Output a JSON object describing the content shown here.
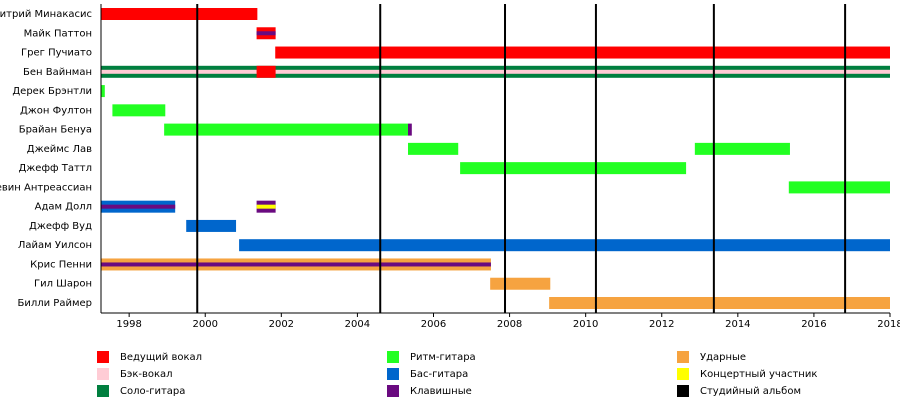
{
  "chart_data": {
    "type": "timeline",
    "xlim": [
      1997.26,
      2018
    ],
    "xticks": [
      1998,
      2000,
      2002,
      2004,
      2006,
      2008,
      2010,
      2012,
      2014,
      2016,
      2018
    ],
    "roles": [
      {
        "name": "Ведущий вокал",
        "color": "#ff0000"
      },
      {
        "name": "Бэк-вокал",
        "color": "#ffccd5"
      },
      {
        "name": "Соло-гитара",
        "color": "#007f3f"
      },
      {
        "name": "Ритм-гитара",
        "color": "#22ff22"
      },
      {
        "name": "Бас-гитара",
        "color": "#0066cc"
      },
      {
        "name": "Клавишные",
        "color": "#6a0a80"
      },
      {
        "name": "Ударные",
        "color": "#f6a340"
      },
      {
        "name": "Концертный участник",
        "color": "#ffff00"
      },
      {
        "name": "Студийный альбом",
        "color": "#000000"
      }
    ],
    "album_role": 8,
    "albums": [
      1999.79,
      2004.6,
      2007.88,
      2010.27,
      2013.37,
      2016.82
    ],
    "members": [
      {
        "name": "Дмитрий Минакасис",
        "bars": [
          {
            "start": 1997.26,
            "end": 2001.37,
            "role": 0
          }
        ]
      },
      {
        "name": "Майк Паттон",
        "bars": [
          {
            "start": 2001.35,
            "end": 2001.85,
            "role": 0,
            "stripe": 5
          }
        ]
      },
      {
        "name": "Грег Пучиато",
        "bars": [
          {
            "start": 2001.84,
            "end": 2018,
            "role": 0
          }
        ]
      },
      {
        "name": "Бен Вайнман",
        "bars": [
          {
            "start": 1997.26,
            "end": 2018,
            "role": 2,
            "stripe": 1
          },
          {
            "start": 2001.35,
            "end": 2001.85,
            "role": 0
          }
        ]
      },
      {
        "name": "Дерек Брэнтли",
        "bars": [
          {
            "start": 1997.26,
            "end": 1997.36,
            "role": 3
          }
        ]
      },
      {
        "name": "Джон Фултон",
        "bars": [
          {
            "start": 1997.56,
            "end": 1998.95,
            "role": 3
          }
        ]
      },
      {
        "name": "Брайан Бенуа",
        "bars": [
          {
            "start": 1998.92,
            "end": 2005.33,
            "role": 3
          },
          {
            "start": 2005.33,
            "end": 2005.43,
            "role": 5
          }
        ]
      },
      {
        "name": "Джеймс Лав",
        "bars": [
          {
            "start": 2005.33,
            "end": 2006.65,
            "role": 3
          },
          {
            "start": 2012.87,
            "end": 2015.37,
            "role": 3
          }
        ]
      },
      {
        "name": "Джефф Таттл",
        "bars": [
          {
            "start": 2006.7,
            "end": 2012.64,
            "role": 3
          }
        ]
      },
      {
        "name": "Кевин Антреассиан",
        "bars": [
          {
            "start": 2015.34,
            "end": 2018,
            "role": 3
          }
        ]
      },
      {
        "name": "Адам Долл",
        "bars": [
          {
            "start": 1997.26,
            "end": 1999.21,
            "role": 4,
            "stripe": 5
          },
          {
            "start": 2001.35,
            "end": 2001.85,
            "role": 5,
            "stripe": 7
          }
        ]
      },
      {
        "name": "Джефф Вуд",
        "bars": [
          {
            "start": 1999.5,
            "end": 2000.81,
            "role": 4
          }
        ]
      },
      {
        "name": "Лайам Уилсон",
        "bars": [
          {
            "start": 2000.89,
            "end": 2018,
            "role": 4
          }
        ]
      },
      {
        "name": "Крис Пенни",
        "bars": [
          {
            "start": 1997.26,
            "end": 2007.51,
            "role": 6,
            "stripe": 5
          }
        ]
      },
      {
        "name": "Гил Шарон",
        "bars": [
          {
            "start": 2007.49,
            "end": 2009.07,
            "role": 6
          }
        ]
      },
      {
        "name": "Билли Раймер",
        "bars": [
          {
            "start": 2009.04,
            "end": 2018,
            "role": 6
          }
        ]
      }
    ]
  }
}
